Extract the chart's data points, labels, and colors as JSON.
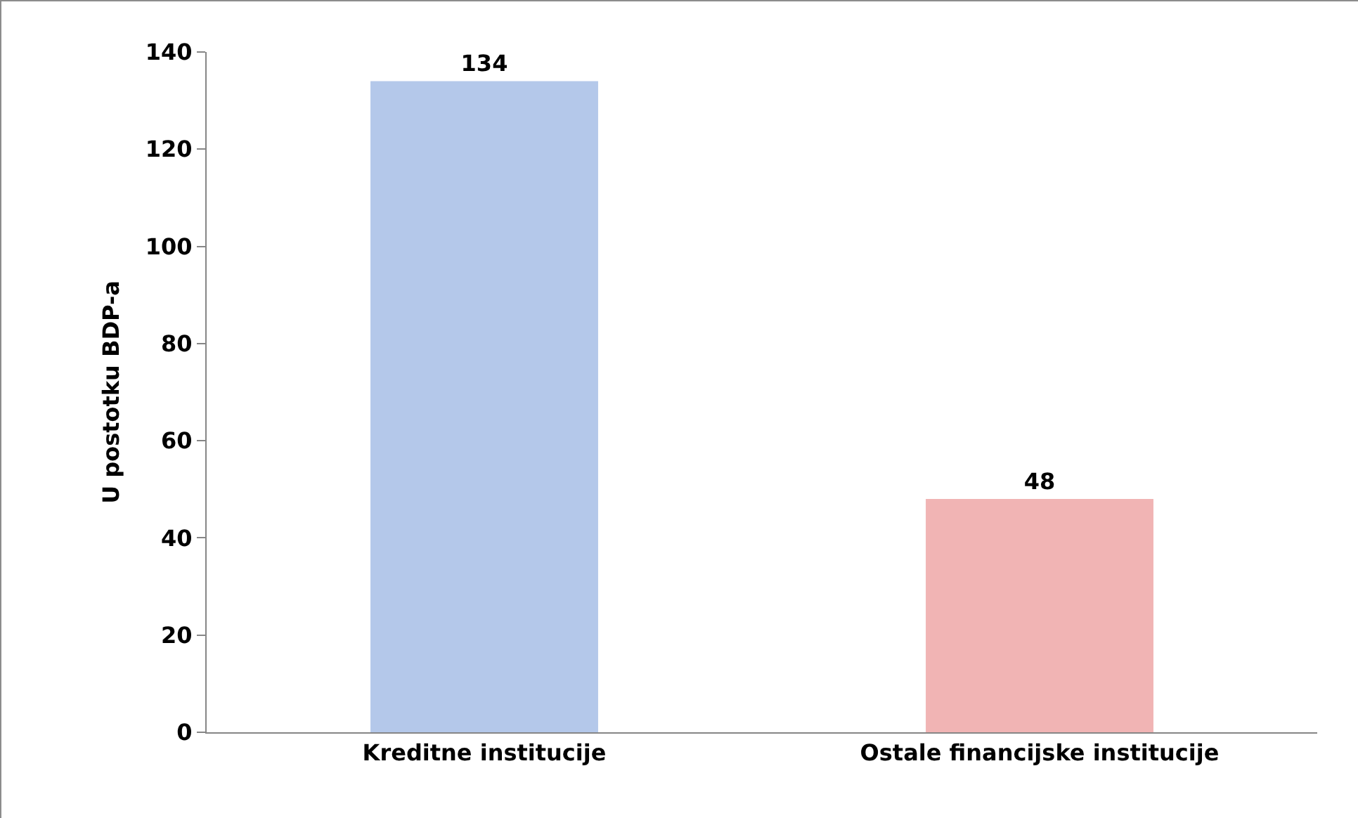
{
  "chart_data": {
    "type": "bar",
    "ylabel": "U postotku BDP-a",
    "categories": [
      "Kreditne institucije",
      "Ostale financijske institucije"
    ],
    "values": [
      134,
      48
    ],
    "colors": [
      "#b4c8ea",
      "#f1b4b4"
    ],
    "ylim": [
      0,
      140
    ],
    "yticks": [
      0,
      20,
      40,
      60,
      80,
      100,
      120,
      140
    ],
    "data_labels": true,
    "grid": false
  }
}
